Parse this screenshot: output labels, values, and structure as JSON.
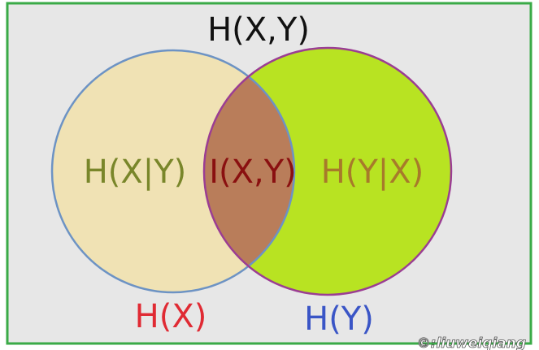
{
  "diagram": {
    "outer_label": "H(X,Y)",
    "regions": {
      "left_only": "H(X|Y)",
      "overlap": "I(X,Y)",
      "right_only": "H(Y|X)"
    },
    "circle_labels": {
      "left": "H(X)",
      "right": "H(Y)"
    },
    "watermark": "©:liuweiqiang"
  },
  "colors": {
    "background": "#e7e7e7",
    "frame": "#3aaa47",
    "left_fill": "#f0e2b4",
    "left_stroke": "#6d93c4",
    "right_fill": "#b8e322",
    "right_stroke": "#9b3d93",
    "overlap_fill": "#b97d5a",
    "outer_label": "#111111",
    "left_only_text": "#79862a",
    "overlap_text": "#8a1010",
    "right_only_text": "#a77a2a",
    "left_label": "#e02a33",
    "right_label": "#3a55c6"
  }
}
